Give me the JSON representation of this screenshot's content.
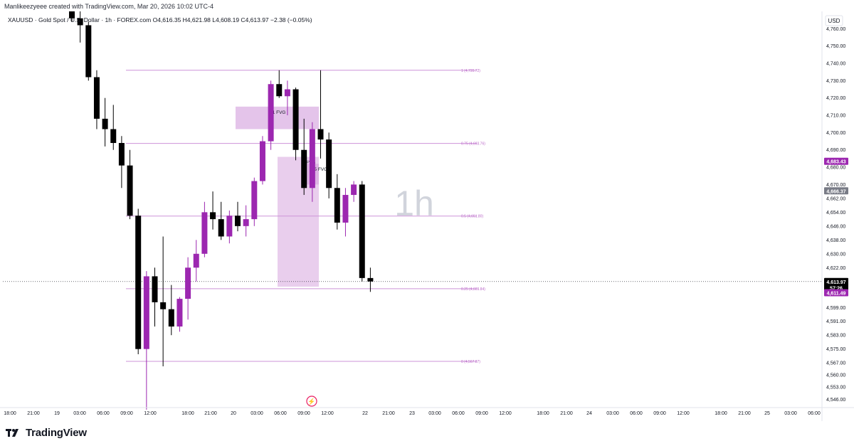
{
  "header": {
    "credit": "Manlikeezyeee created with TradingView.com, Mar 20, 2026 10:02 UTC-4"
  },
  "symbol_line": {
    "symbol": "XAUUSD · Gold Spot / U.S. Dollar · 1h · FOREX.com",
    "ohlc": "O4,616.35 H4,621.98 L4,608.19 C4,613.97 −2.38 (−0.05%)"
  },
  "currency_button": "USD",
  "watermark": "1h",
  "footer": {
    "brand": "TradingView"
  },
  "colors": {
    "bull": "#9c27b0",
    "bear": "#000000",
    "fib_line": "#ce93d8",
    "fvg_fill": "#ce93d8",
    "axis_text": "#131722"
  },
  "chart_data": {
    "type": "candlestick",
    "ylim": [
      4542,
      4770
    ],
    "y_ticks": [
      "4,760.00",
      "4,750.00",
      "4,740.00",
      "4,730.00",
      "4,720.00",
      "4,710.00",
      "4,700.00",
      "4,690.00",
      "4,680.00",
      "4,670.00",
      "4,662.00",
      "4,654.00",
      "4,646.00",
      "4,638.00",
      "4,630.00",
      "4,622.00",
      "4,614.00",
      "4,607.00",
      "4,599.00",
      "4,591.00",
      "4,583.00",
      "4,575.00",
      "4,567.00",
      "4,560.00",
      "4,553.00",
      "4,546.00"
    ],
    "x_ticks": [
      "18:00",
      "21:00",
      "19",
      "03:00",
      "06:00",
      "09:00",
      "12:00",
      "18:00",
      "21:00",
      "20",
      "03:00",
      "06:00",
      "09:00",
      "12:00",
      "22",
      "21:00",
      "23",
      "03:00",
      "06:00",
      "09:00",
      "12:00",
      "18:00",
      "21:00",
      "24",
      "03:00",
      "06:00",
      "09:00",
      "12:00",
      "18:00",
      "21:00",
      "25",
      "03:00",
      "06:00"
    ],
    "candles": [
      {
        "o": 4771,
        "h": 4775,
        "l": 4764,
        "c": 4766
      },
      {
        "o": 4766,
        "h": 4770,
        "l": 4752,
        "c": 4762
      },
      {
        "o": 4762,
        "h": 4764,
        "l": 4730,
        "c": 4732
      },
      {
        "o": 4732,
        "h": 4736,
        "l": 4702,
        "c": 4708
      },
      {
        "o": 4708,
        "h": 4720,
        "l": 4692,
        "c": 4702
      },
      {
        "o": 4702,
        "h": 4716,
        "l": 4690,
        "c": 4694
      },
      {
        "o": 4694,
        "h": 4698,
        "l": 4668,
        "c": 4681
      },
      {
        "o": 4681,
        "h": 4690,
        "l": 4650,
        "c": 4652
      },
      {
        "o": 4652,
        "h": 4656,
        "l": 4572,
        "c": 4575
      },
      {
        "o": 4575,
        "h": 4620,
        "l": 4540,
        "c": 4617
      },
      {
        "o": 4617,
        "h": 4622,
        "l": 4588,
        "c": 4602
      },
      {
        "o": 4602,
        "h": 4640,
        "l": 4565,
        "c": 4598
      },
      {
        "o": 4598,
        "h": 4612,
        "l": 4583,
        "c": 4588
      },
      {
        "o": 4588,
        "h": 4605,
        "l": 4585,
        "c": 4604
      },
      {
        "o": 4604,
        "h": 4628,
        "l": 4592,
        "c": 4622
      },
      {
        "o": 4622,
        "h": 4638,
        "l": 4614,
        "c": 4630
      },
      {
        "o": 4630,
        "h": 4660,
        "l": 4628,
        "c": 4654
      },
      {
        "o": 4654,
        "h": 4666,
        "l": 4644,
        "c": 4650
      },
      {
        "o": 4650,
        "h": 4660,
        "l": 4638,
        "c": 4640
      },
      {
        "o": 4640,
        "h": 4655,
        "l": 4636,
        "c": 4652
      },
      {
        "o": 4652,
        "h": 4660,
        "l": 4643,
        "c": 4646
      },
      {
        "o": 4646,
        "h": 4658,
        "l": 4640,
        "c": 4650
      },
      {
        "o": 4650,
        "h": 4674,
        "l": 4646,
        "c": 4672
      },
      {
        "o": 4672,
        "h": 4698,
        "l": 4670,
        "c": 4695
      },
      {
        "o": 4695,
        "h": 4730,
        "l": 4690,
        "c": 4728
      },
      {
        "o": 4728,
        "h": 4736,
        "l": 4720,
        "c": 4721
      },
      {
        "o": 4721,
        "h": 4730,
        "l": 4710,
        "c": 4725
      },
      {
        "o": 4725,
        "h": 4726,
        "l": 4684,
        "c": 4690
      },
      {
        "o": 4690,
        "h": 4708,
        "l": 4664,
        "c": 4668
      },
      {
        "o": 4668,
        "h": 4706,
        "l": 4660,
        "c": 4702
      },
      {
        "o": 4702,
        "h": 4736,
        "l": 4685,
        "c": 4696
      },
      {
        "o": 4696,
        "h": 4700,
        "l": 4662,
        "c": 4668
      },
      {
        "o": 4668,
        "h": 4676,
        "l": 4644,
        "c": 4648
      },
      {
        "o": 4648,
        "h": 4668,
        "l": 4640,
        "c": 4664
      },
      {
        "o": 4664,
        "h": 4672,
        "l": 4660,
        "c": 4670
      },
      {
        "o": 4670,
        "h": 4672,
        "l": 4614,
        "c": 4616
      },
      {
        "o": 4616,
        "h": 4622,
        "l": 4608,
        "c": 4614
      }
    ],
    "fib_levels": [
      {
        "label": "1 (4,735.72)",
        "price": 4736
      },
      {
        "label": "0.75 (4,693.76)",
        "price": 4693.76
      },
      {
        "label": "0.5 (4,651.80)",
        "price": 4651.8
      },
      {
        "label": "0.25 (4,609.84)",
        "price": 4609.84
      },
      {
        "label": "0 (4,567.87)",
        "price": 4567.87
      }
    ],
    "zones": [
      {
        "label": "H1 FVG",
        "top": 4715,
        "bottom": 4702
      },
      {
        "label": "FVG",
        "top": 4686,
        "bottom": 4611
      },
      {
        "label": "M5 FVG",
        "top": 4682,
        "bottom": 4670
      }
    ],
    "price_labels": [
      {
        "text": "4,683.43",
        "price": 4683.43,
        "bg": "#9c27b0",
        "fg": "#ffffff"
      },
      {
        "text": "4,666.37",
        "price": 4666.37,
        "bg": "#787b86",
        "fg": "#ffffff"
      },
      {
        "text": "4,613.97",
        "price": 4613.97,
        "bg": "#000000",
        "fg": "#ffffff"
      },
      {
        "text": "57:26",
        "price": 4610.5,
        "bg": "#000000",
        "fg": "#ffffff"
      },
      {
        "text": "4,611.49",
        "price": 4607.5,
        "bg": "#9c27b0",
        "fg": "#ffffff"
      }
    ],
    "current_price": 4613.97
  }
}
